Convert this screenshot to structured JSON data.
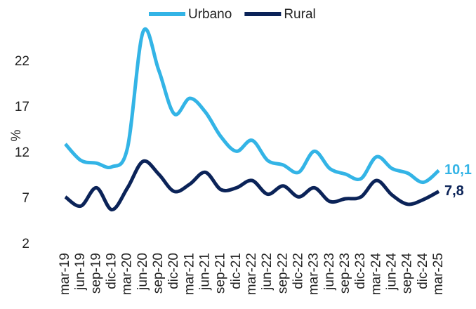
{
  "chart_data": {
    "type": "line",
    "y_label": "%",
    "categories": [
      "mar-19",
      "jun-19",
      "sep-19",
      "dic-19",
      "mar-20",
      "jun-20",
      "sep-20",
      "dic-20",
      "mar-21",
      "jun-21",
      "sep-21",
      "dic-21",
      "mar-22",
      "jun-22",
      "sep-22",
      "dic-22",
      "mar-23",
      "jun-23",
      "sep-23",
      "dic-23",
      "mar-24",
      "jun-24",
      "sep-24",
      "dic-24",
      "mar-25"
    ],
    "series": [
      {
        "name": "Urbano",
        "color": "#33b4e6",
        "values": [
          13.0,
          11.2,
          10.9,
          10.5,
          12.6,
          25.3,
          21.1,
          16.3,
          18.0,
          16.5,
          13.8,
          12.2,
          13.4,
          11.2,
          10.7,
          9.9,
          12.2,
          10.3,
          9.7,
          9.2,
          11.6,
          10.3,
          9.8,
          8.8,
          10.1
        ],
        "value_labels": [
          null,
          null,
          null,
          null,
          null,
          null,
          null,
          null,
          null,
          null,
          null,
          null,
          null,
          null,
          null,
          null,
          null,
          null,
          null,
          null,
          null,
          null,
          null,
          null,
          "10,1"
        ]
      },
      {
        "name": "Rural",
        "color": "#0b2358",
        "values": [
          7.2,
          6.2,
          8.2,
          5.8,
          8.2,
          11.1,
          9.7,
          7.8,
          8.6,
          9.9,
          8.0,
          8.2,
          9.0,
          7.5,
          8.4,
          7.2,
          8.2,
          6.7,
          7.0,
          7.2,
          9.0,
          7.4,
          6.4,
          6.9,
          7.8
        ],
        "value_labels": [
          null,
          null,
          null,
          null,
          null,
          null,
          null,
          null,
          null,
          null,
          null,
          null,
          null,
          null,
          null,
          null,
          null,
          null,
          null,
          null,
          null,
          null,
          null,
          null,
          "7,8"
        ]
      }
    ],
    "ylim": [
      2,
      27
    ],
    "yticks": [
      2,
      7,
      12,
      17,
      22
    ],
    "grid": false,
    "legend": "top"
  }
}
